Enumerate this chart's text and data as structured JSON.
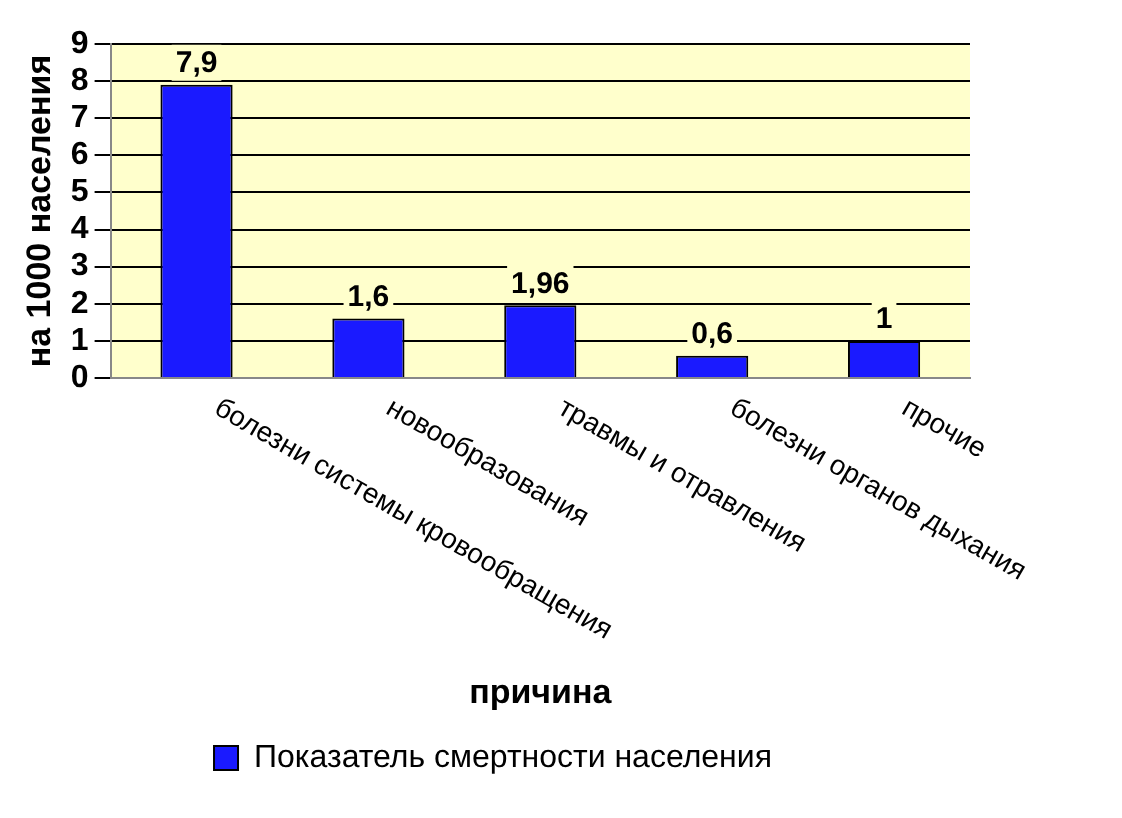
{
  "chart_data": {
    "type": "bar",
    "xlabel": "причина",
    "ylabel": "на 1000 населения",
    "categories": [
      "болезни системы кровообращения",
      "новообразования",
      "травмы и отравления",
      "болезни органов дыхания",
      "прочие"
    ],
    "series": [
      {
        "name": "Показатель смертности населения",
        "color": "#1a1aff",
        "values": [
          7.9,
          1.6,
          1.96,
          0.6,
          1
        ],
        "value_labels": [
          "7,9",
          "1,6",
          "1,96",
          "0,6",
          "1"
        ]
      }
    ],
    "ylim": [
      0,
      9
    ],
    "yticks": [
      0,
      1,
      2,
      3,
      4,
      5,
      6,
      7,
      8,
      9
    ],
    "grid": "y",
    "legend": "bottom"
  }
}
